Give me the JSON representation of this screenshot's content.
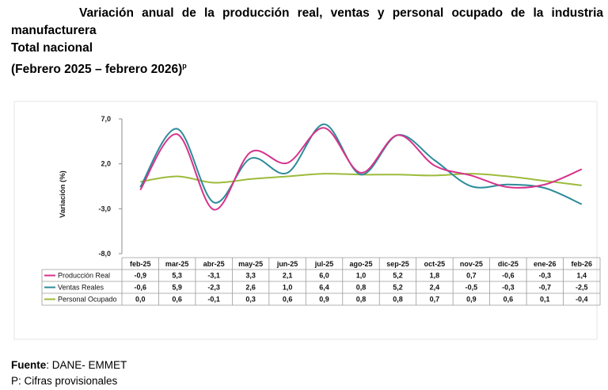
{
  "header": {
    "title_part1": "Variación anual de la producción real, ventas y personal ocupado de la industria",
    "title_part2": "manufacturera",
    "subtitle": "Total nacional",
    "period": "(Febrero 2025 – febrero 2026)",
    "period_sup": "p"
  },
  "chart_data": {
    "type": "line",
    "ylabel": "Variación (%)",
    "ylim": [
      -8.0,
      7.0
    ],
    "yticks": [
      7.0,
      2.0,
      -3.0,
      -8.0
    ],
    "ytick_labels": [
      "7,0",
      "2,0",
      "-3,0",
      "-8,0"
    ],
    "grid": false,
    "legend": "data-table",
    "categories": [
      "feb-25",
      "mar-25",
      "abr-25",
      "may-25",
      "jun-25",
      "jul-25",
      "ago-25",
      "sep-25",
      "oct-25",
      "nov-25",
      "dic-25",
      "ene-26",
      "feb-26"
    ],
    "series": [
      {
        "name": "Producción Real",
        "color": "#d6338c",
        "values": [
          -0.9,
          5.3,
          -3.1,
          3.3,
          2.1,
          6.0,
          1.0,
          5.2,
          1.8,
          0.7,
          -0.6,
          -0.3,
          1.4
        ],
        "labels": [
          "-0,9",
          "5,3",
          "-3,1",
          "3,3",
          "2,1",
          "6,0",
          "1,0",
          "5,2",
          "1,8",
          "0,7",
          "-0,6",
          "-0,3",
          "1,4"
        ]
      },
      {
        "name": "Ventas Reales",
        "color": "#2e8b9a",
        "values": [
          -0.6,
          5.9,
          -2.3,
          2.6,
          1.0,
          6.4,
          0.8,
          5.2,
          2.4,
          -0.5,
          -0.3,
          -0.7,
          -2.5
        ],
        "labels": [
          "-0,6",
          "5,9",
          "-2,3",
          "2,6",
          "1,0",
          "6,4",
          "0,8",
          "5,2",
          "2,4",
          "-0,5",
          "-0,3",
          "-0,7",
          "-2,5"
        ]
      },
      {
        "name": "Personal Ocupado",
        "color": "#9dbb3c",
        "values": [
          0.0,
          0.6,
          -0.1,
          0.3,
          0.6,
          0.9,
          0.8,
          0.8,
          0.7,
          0.9,
          0.6,
          0.1,
          -0.4
        ],
        "labels": [
          "0,0",
          "0,6",
          "-0,1",
          "0,3",
          "0,6",
          "0,9",
          "0,8",
          "0,8",
          "0,7",
          "0,9",
          "0,6",
          "0,1",
          "-0,4"
        ]
      }
    ]
  },
  "footer": {
    "source_label": "Fuente",
    "source_text": ": DANE- EMMET",
    "note": "P: Cifras provisionales"
  }
}
